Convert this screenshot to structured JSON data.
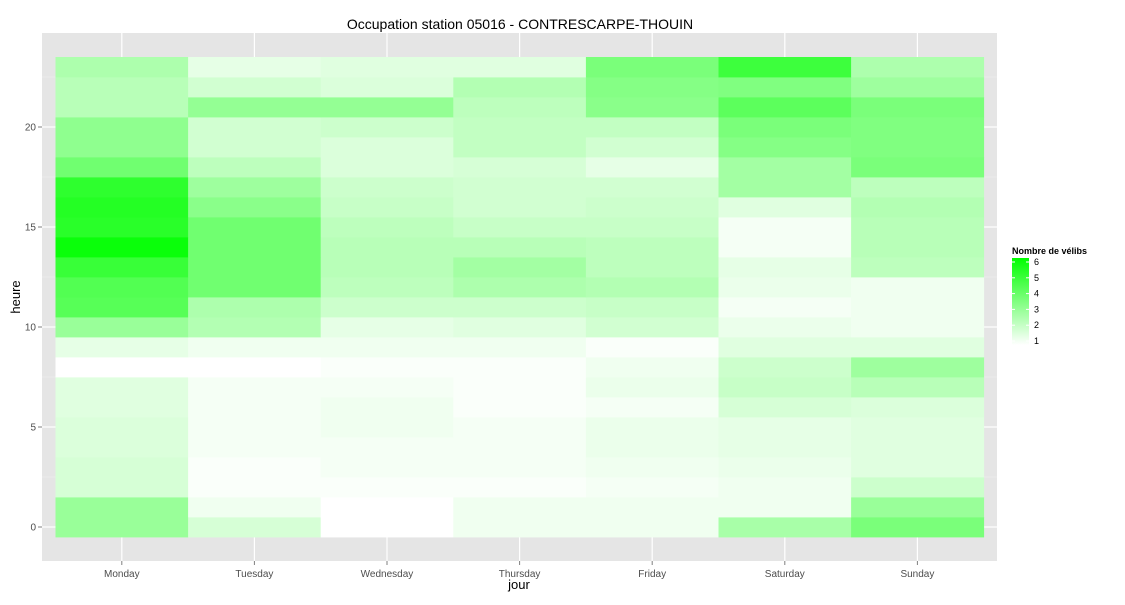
{
  "chart_data": {
    "type": "heatmap",
    "title": "Occupation station 05016 - CONTRESCARPE-THOUIN",
    "xlabel": "jour",
    "ylabel": "heure",
    "categories": [
      "Monday",
      "Tuesday",
      "Wednesday",
      "Thursday",
      "Friday",
      "Saturday",
      "Sunday"
    ],
    "hours": [
      0,
      1,
      2,
      3,
      4,
      5,
      6,
      7,
      8,
      9,
      10,
      11,
      12,
      13,
      14,
      15,
      16,
      17,
      18,
      19,
      20,
      21,
      22,
      23
    ],
    "y_ticks": [
      0,
      5,
      10,
      15,
      20
    ],
    "ylim": [
      -0.5,
      23.5
    ],
    "values": [
      [
        3.0,
        1.8,
        1.0,
        1.3,
        1.3,
        2.7,
        3.6
      ],
      [
        3.0,
        1.3,
        1.0,
        1.3,
        1.3,
        1.3,
        3.0
      ],
      [
        1.8,
        1.1,
        1.1,
        1.1,
        1.2,
        1.3,
        2.0
      ],
      [
        1.8,
        1.1,
        1.2,
        1.2,
        1.3,
        1.4,
        1.6
      ],
      [
        1.7,
        1.2,
        1.2,
        1.2,
        1.4,
        1.5,
        1.6
      ],
      [
        1.7,
        1.2,
        1.3,
        1.2,
        1.4,
        1.5,
        1.6
      ],
      [
        1.6,
        1.2,
        1.3,
        1.1,
        1.2,
        1.8,
        1.7
      ],
      [
        1.6,
        1.2,
        1.2,
        1.1,
        1.4,
        2.1,
        2.4
      ],
      [
        1.0,
        1.0,
        1.1,
        1.1,
        1.3,
        2.0,
        2.9
      ],
      [
        1.5,
        1.3,
        1.3,
        1.3,
        1.1,
        1.6,
        1.6
      ],
      [
        3.0,
        2.5,
        1.5,
        1.6,
        1.9,
        1.4,
        1.3
      ],
      [
        4.3,
        2.6,
        2.0,
        2.0,
        2.1,
        1.2,
        1.3
      ],
      [
        4.4,
        3.8,
        2.3,
        2.6,
        2.5,
        1.4,
        1.3
      ],
      [
        4.9,
        3.8,
        2.4,
        2.8,
        2.3,
        1.5,
        2.3
      ],
      [
        5.8,
        3.8,
        2.4,
        2.4,
        2.3,
        1.2,
        2.4
      ],
      [
        5.2,
        3.8,
        2.3,
        2.1,
        2.1,
        1.2,
        2.4
      ],
      [
        5.3,
        3.3,
        2.1,
        1.9,
        2.0,
        1.6,
        2.5
      ],
      [
        5.1,
        2.9,
        2.0,
        1.9,
        1.9,
        2.8,
        2.3
      ],
      [
        3.8,
        2.3,
        1.7,
        1.8,
        1.5,
        2.8,
        3.6
      ],
      [
        3.2,
        1.9,
        1.7,
        2.2,
        1.9,
        3.4,
        3.5
      ],
      [
        3.2,
        1.9,
        2.0,
        2.2,
        2.2,
        3.6,
        3.5
      ],
      [
        2.4,
        3.1,
        3.1,
        2.3,
        3.3,
        4.2,
        3.6
      ],
      [
        2.4,
        1.9,
        1.7,
        2.5,
        3.4,
        3.5,
        2.9
      ],
      [
        2.6,
        1.5,
        1.6,
        1.6,
        3.6,
        4.8,
        2.6
      ]
    ],
    "legend": {
      "title": "Nombre de vélibs",
      "labels": [
        "6",
        "5",
        "4",
        "3",
        "2",
        "1"
      ],
      "min": 1,
      "max": 6,
      "position": "right"
    },
    "colors": {
      "low": "#ffffff",
      "high": "#00ff00",
      "panel": "#e5e5e5",
      "grid": "#ffffff"
    },
    "grid": true
  }
}
